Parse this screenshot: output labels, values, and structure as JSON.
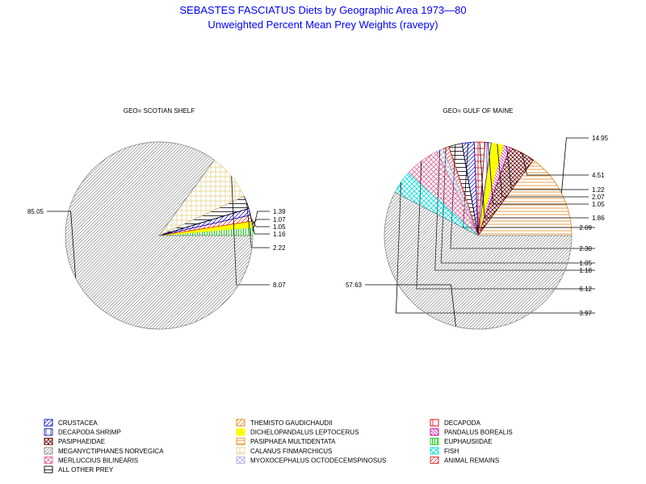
{
  "title": "SEBASTES FASCIATUS Diets by Geographic Area 1973—80",
  "subtitle": "Unweighted Percent Mean Prey Weights (ravepy)",
  "chart_data": [
    {
      "type": "pie",
      "title": "GEO= SCOTIAN SHELF",
      "slices": [
        {
          "category": "EUPHAUSIIDAE",
          "value": 1.39,
          "label": "1.39"
        },
        {
          "category": "DICHELOPANDALUS LEPTOCERUS",
          "value": 1.07,
          "label": "1.07"
        },
        {
          "category": "ANIMAL REMAINS",
          "value": 1.05,
          "label": "1.05"
        },
        {
          "category": "CRUSTACEA",
          "value": 1.16,
          "label": "1.16"
        },
        {
          "category": "ALL OTHER PREY",
          "value": 2.22,
          "label": "2.22"
        },
        {
          "category": "CALANUS FINMARCHICUS",
          "value": 8.07,
          "label": "8.07"
        },
        {
          "category": "MEGANYCTIPHANES NORVEGICA",
          "value": 85.05,
          "label": "85.05"
        }
      ]
    },
    {
      "type": "pie",
      "title": "GEO= GULF OF MAINE",
      "slices": [
        {
          "category": "PASIPHAEA MULTIDENTATA",
          "value": 14.95,
          "label": "14.95"
        },
        {
          "category": "PASIPHAEIDAE",
          "value": 4.51,
          "label": "4.51"
        },
        {
          "category": "PANDALUS BOREALIS",
          "value": 1.22,
          "label": "1.22"
        },
        {
          "category": "DICHELOPANDALUS LEPTOCERUS",
          "value": 2.07,
          "label": "2.07"
        },
        {
          "category": "DECAPODA SHRIMP",
          "value": 1.05,
          "label": "1.05"
        },
        {
          "category": "DECAPODA",
          "value": 1.86,
          "label": "1.86"
        },
        {
          "category": "CRUSTACEA",
          "value": 2.09,
          "label": "2.09"
        },
        {
          "category": "ALL OTHER PREY",
          "value": 2.3,
          "label": "2.30"
        },
        {
          "category": "ANIMAL REMAINS",
          "value": 1.05,
          "label": "1.05"
        },
        {
          "category": "MYOXOCEPHALUS OCTODECEMSPINOSUS",
          "value": 1.18,
          "label": "1.18"
        },
        {
          "category": "MERLUCCIUS BILINEARIS",
          "value": 6.12,
          "label": "6.12"
        },
        {
          "category": "FISH",
          "value": 3.97,
          "label": "3.97"
        },
        {
          "category": "MEGANYCTIPHANES NORVEGICA",
          "value": 57.63,
          "label": "57.63"
        }
      ]
    }
  ],
  "legend": [
    {
      "name": "CRUSTACEA",
      "pattern": "diag-blue"
    },
    {
      "name": "THEMISTO GAUDICHAUDII",
      "pattern": "diag-orange"
    },
    {
      "name": "DECAPODA",
      "pattern": "red-box"
    },
    {
      "name": "DECAPODA SHRIMP",
      "pattern": "vert-blue"
    },
    {
      "name": "DICHELOPANDALUS LEPTOCERUS",
      "pattern": "solid-yellow"
    },
    {
      "name": "PANDALUS BOREALIS",
      "pattern": "diag-magenta"
    },
    {
      "name": "PASIPHAEIDAE",
      "pattern": "crosshatch-maroon"
    },
    {
      "name": "PASIPHAEA MULTIDENTATA",
      "pattern": "horiz-orange"
    },
    {
      "name": "EUPHAUSIIDAE",
      "pattern": "vert-green"
    },
    {
      "name": "MEGANYCTIPHANES NORVEGICA",
      "pattern": "diag-gray"
    },
    {
      "name": "CALANUS FINMARCHICUS",
      "pattern": "grid-tan"
    },
    {
      "name": "FISH",
      "pattern": "crosshatch-cyan"
    },
    {
      "name": "MERLUCCIUS BILINEARIS",
      "pattern": "crosshatch-pink"
    },
    {
      "name": "MYOXOCEPHALUS OCTODECEMSPINOSUS",
      "pattern": "crosshatch-lavender"
    },
    {
      "name": "ANIMAL REMAINS",
      "pattern": "diag-red"
    },
    {
      "name": "ALL OTHER PREY",
      "pattern": "horiz-black"
    }
  ],
  "colors": {
    "title": "#0000ff",
    "diag-blue": "#0000cc",
    "diag-orange": "#e08000",
    "red-box": "#dd0000",
    "vert-blue": "#2222aa",
    "solid-yellow": "#ffff00",
    "diag-magenta": "#cc0099",
    "crosshatch-maroon": "#660000",
    "horiz-orange": "#e08a1e",
    "vert-green": "#00cc00",
    "diag-gray": "#888888",
    "grid-tan": "#e8d8a0",
    "crosshatch-cyan": "#00dddd",
    "crosshatch-pink": "#dd6699",
    "crosshatch-lavender": "#aab0dd",
    "diag-red": "#dd2222",
    "horiz-black": "#000000"
  }
}
